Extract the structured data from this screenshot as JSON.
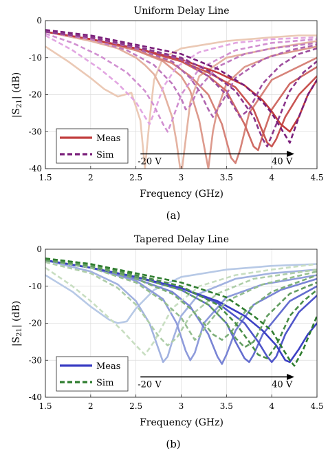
{
  "chart_data": [
    {
      "type": "line",
      "title": "Uniform Delay Line",
      "subtitle": "(a)",
      "xlabel": "Frequency (GHz)",
      "ylabel_prefix": "|S",
      "ylabel_sub": "21",
      "ylabel_suffix": "| (dB)",
      "xlim": [
        1.5,
        4.5
      ],
      "ylim": [
        -40,
        0
      ],
      "xticks": [
        1.5,
        2,
        2.5,
        3,
        3.5,
        4,
        4.5
      ],
      "xtick_labels": [
        "1.5",
        "2",
        "2.5",
        "3",
        "3.5",
        "4",
        "4.5"
      ],
      "yticks": [
        0,
        -10,
        -20,
        -30,
        -40
      ],
      "ytick_labels": [
        "0",
        "-10",
        "-20",
        "-30",
        "-40"
      ],
      "grid": true,
      "legend": {
        "position": "bottom-left",
        "entries": [
          {
            "label": "Meas",
            "style": "solid",
            "color": "#c13d3d"
          },
          {
            "label": "Sim",
            "style": "dashed",
            "color": "#7a1f7a"
          }
        ]
      },
      "annotation": {
        "start_label": "-20 V",
        "end_label": "40 V",
        "y": -36,
        "x_from": 2.55,
        "x_to": 4.25
      },
      "series_meas_color_light": "#ebc9b5",
      "series_meas_color_dark": "#c13d3d",
      "series_sim_color_light": "#e2a6e2",
      "series_sim_color_dark": "#7a1f7a",
      "series_meas": [
        {
          "x": [
            1.5,
            1.75,
            2.0,
            2.15,
            2.3,
            2.45,
            2.55,
            2.6,
            2.65,
            2.7,
            2.8,
            3.0,
            3.5,
            4.0,
            4.3,
            4.5
          ],
          "y": [
            -7,
            -11,
            -15.5,
            -18.5,
            -20.5,
            -19.5,
            -27,
            -40,
            -27,
            -16,
            -10,
            -7.5,
            -5.5,
            -4.5,
            -4,
            -4
          ]
        },
        {
          "x": [
            1.5,
            2.0,
            2.3,
            2.5,
            2.6,
            2.7,
            2.8,
            2.9,
            2.95,
            3.0,
            3.05,
            3.1,
            3.2,
            3.5,
            4.0,
            4.5
          ],
          "y": [
            -3,
            -5.5,
            -7.5,
            -10,
            -12,
            -14.5,
            -19,
            -26,
            -33,
            -42,
            -32,
            -22,
            -15,
            -10,
            -7.5,
            -5.5
          ]
        },
        {
          "x": [
            1.5,
            2.0,
            2.5,
            2.8,
            3.0,
            3.1,
            3.2,
            3.3,
            3.35,
            3.4,
            3.5,
            3.7,
            4.0,
            4.5
          ],
          "y": [
            -3,
            -5,
            -8,
            -11,
            -15,
            -19,
            -27,
            -40,
            -30,
            -24,
            -17,
            -12.5,
            -9.5,
            -7
          ]
        },
        {
          "x": [
            1.5,
            2.0,
            2.5,
            2.9,
            3.1,
            3.3,
            3.45,
            3.55,
            3.6,
            3.65,
            3.75,
            4.0,
            4.5
          ],
          "y": [
            -3,
            -5,
            -8,
            -11.5,
            -15,
            -20,
            -28,
            -37,
            -38.5,
            -35,
            -25,
            -16,
            -10
          ]
        },
        {
          "x": [
            1.5,
            2.0,
            2.5,
            3.0,
            3.3,
            3.5,
            3.7,
            3.8,
            3.85,
            3.9,
            4.0,
            4.2,
            4.5
          ],
          "y": [
            -3,
            -5,
            -7.5,
            -11,
            -15,
            -19,
            -28,
            -34,
            -35,
            -31,
            -24,
            -17,
            -12.5
          ]
        },
        {
          "x": [
            1.5,
            2.0,
            2.5,
            3.0,
            3.3,
            3.6,
            3.8,
            3.95,
            4.0,
            4.05,
            4.15,
            4.3,
            4.5
          ],
          "y": [
            -3,
            -5,
            -7.5,
            -11,
            -14,
            -18,
            -24,
            -33,
            -34,
            -32,
            -26,
            -20,
            -15
          ]
        },
        {
          "x": [
            1.5,
            2.0,
            2.5,
            3.0,
            3.4,
            3.7,
            3.9,
            4.0,
            4.1,
            4.2,
            4.3,
            4.4,
            4.5
          ],
          "y": [
            -3,
            -5,
            -7.5,
            -10.5,
            -14,
            -17.5,
            -21.5,
            -24.5,
            -28,
            -30,
            -26,
            -20,
            -16
          ]
        }
      ],
      "series_sim": [
        {
          "x": [
            1.5,
            1.8,
            2.1,
            2.3,
            2.5,
            2.6,
            2.65,
            2.7,
            2.8,
            2.95,
            3.2,
            3.6,
            4.0,
            4.5
          ],
          "y": [
            -4,
            -8,
            -13,
            -17,
            -22,
            -26,
            -28,
            -25,
            -18,
            -12.5,
            -8.5,
            -6,
            -5,
            -4.5
          ]
        },
        {
          "x": [
            1.5,
            1.8,
            2.1,
            2.4,
            2.6,
            2.7,
            2.8,
            2.85,
            2.9,
            3.0,
            3.2,
            3.6,
            4.0,
            4.5
          ],
          "y": [
            -3.5,
            -6,
            -9.5,
            -14,
            -19,
            -23,
            -28,
            -30,
            -27,
            -20,
            -13,
            -8,
            -6,
            -5
          ]
        },
        {
          "x": [
            1.5,
            2.0,
            2.4,
            2.7,
            2.9,
            3.0,
            3.05,
            3.1,
            3.2,
            3.4,
            3.7,
            4.0,
            4.5
          ],
          "y": [
            -3,
            -5,
            -8,
            -12,
            -17,
            -21,
            -24,
            -23,
            -18,
            -12.5,
            -9,
            -7.5,
            -6
          ]
        },
        {
          "x": [
            1.5,
            2.0,
            2.5,
            2.9,
            3.1,
            3.2,
            3.3,
            3.35,
            3.45,
            3.6,
            3.9,
            4.2,
            4.5
          ],
          "y": [
            -3,
            -4.5,
            -7.5,
            -11,
            -15.5,
            -19,
            -24,
            -26,
            -22,
            -15.5,
            -10.5,
            -8,
            -6.5
          ]
        },
        {
          "x": [
            1.5,
            2.0,
            2.5,
            3.0,
            3.3,
            3.5,
            3.6,
            3.65,
            3.75,
            3.9,
            4.1,
            4.3,
            4.5
          ],
          "y": [
            -3,
            -4.5,
            -7,
            -10.5,
            -15,
            -20,
            -24,
            -26,
            -24,
            -17,
            -12,
            -9,
            -7.5
          ]
        },
        {
          "x": [
            1.5,
            2.0,
            2.5,
            3.0,
            3.3,
            3.6,
            3.8,
            3.9,
            3.95,
            4.05,
            4.2,
            4.35,
            4.5
          ],
          "y": [
            -3,
            -4.5,
            -7,
            -10,
            -13.5,
            -19,
            -26,
            -32,
            -34,
            -28,
            -19,
            -14,
            -11
          ]
        },
        {
          "x": [
            1.5,
            2.0,
            2.5,
            3.0,
            3.4,
            3.7,
            3.9,
            4.0,
            4.1,
            4.2,
            4.3,
            4.4,
            4.5
          ],
          "y": [
            -2.5,
            -4,
            -6.5,
            -9,
            -13,
            -17.5,
            -22,
            -25,
            -29,
            -33,
            -26,
            -20,
            -16
          ]
        }
      ]
    },
    {
      "type": "line",
      "title": "Tapered Delay Line",
      "subtitle": "(b)",
      "xlabel": "Frequency (GHz)",
      "ylabel_prefix": "|S",
      "ylabel_sub": "21",
      "ylabel_suffix": "| (dB)",
      "xlim": [
        1.5,
        4.5
      ],
      "ylim": [
        -40,
        0
      ],
      "xticks": [
        1.5,
        2,
        2.5,
        3,
        3.5,
        4,
        4.5
      ],
      "xtick_labels": [
        "1.5",
        "2",
        "2.5",
        "3",
        "3.5",
        "4",
        "4.5"
      ],
      "yticks": [
        0,
        -10,
        -20,
        -30,
        -40
      ],
      "ytick_labels": [
        "0",
        "-10",
        "-20",
        "-30",
        "-40"
      ],
      "grid": true,
      "legend": {
        "position": "bottom-left",
        "entries": [
          {
            "label": "Meas",
            "style": "solid",
            "color": "#3b3fc4"
          },
          {
            "label": "Sim",
            "style": "dashed",
            "color": "#2f7d2f"
          }
        ]
      },
      "annotation": {
        "start_label": "-20 V",
        "end_label": "40 V",
        "y": -34.5,
        "x_from": 2.55,
        "x_to": 4.25
      },
      "series_meas_color_light": "#b7c9e6",
      "series_meas_color_dark": "#3b3fc4",
      "series_sim_color_light": "#c8dec1",
      "series_sim_color_dark": "#2f7d2f",
      "series_meas": [
        {
          "x": [
            1.5,
            1.8,
            2.0,
            2.2,
            2.3,
            2.4,
            2.5,
            2.7,
            3.0,
            3.5,
            4.0,
            4.5
          ],
          "y": [
            -7,
            -11.5,
            -15.5,
            -19,
            -20,
            -19.5,
            -16,
            -11,
            -7.5,
            -5.5,
            -4.5,
            -4
          ]
        },
        {
          "x": [
            1.5,
            2.0,
            2.3,
            2.5,
            2.65,
            2.75,
            2.8,
            2.85,
            2.9,
            3.0,
            3.2,
            3.6,
            4.0,
            4.5
          ],
          "y": [
            -3,
            -6,
            -9.5,
            -14,
            -20,
            -27,
            -30.5,
            -29,
            -25,
            -18,
            -12,
            -8,
            -6.5,
            -5.5
          ]
        },
        {
          "x": [
            1.5,
            2.0,
            2.5,
            2.8,
            2.95,
            3.05,
            3.1,
            3.15,
            3.25,
            3.5,
            3.9,
            4.5
          ],
          "y": [
            -3,
            -5,
            -8.5,
            -13.5,
            -20,
            -27.5,
            -30,
            -28,
            -20,
            -13,
            -9.5,
            -7
          ]
        },
        {
          "x": [
            1.5,
            2.0,
            2.5,
            2.9,
            3.1,
            3.3,
            3.4,
            3.45,
            3.5,
            3.6,
            3.8,
            4.1,
            4.5
          ],
          "y": [
            -3,
            -5,
            -8,
            -11.5,
            -15.5,
            -23,
            -29,
            -31,
            -28.5,
            -22,
            -15,
            -11,
            -8
          ]
        },
        {
          "x": [
            1.5,
            2.0,
            2.5,
            3.0,
            3.3,
            3.5,
            3.6,
            3.7,
            3.75,
            3.8,
            3.9,
            4.2,
            4.5
          ],
          "y": [
            -3,
            -5,
            -7.5,
            -11,
            -15,
            -20,
            -25,
            -29.5,
            -30.5,
            -28.5,
            -23,
            -14,
            -10
          ]
        },
        {
          "x": [
            1.5,
            2.0,
            2.5,
            3.0,
            3.4,
            3.7,
            3.85,
            3.95,
            4.0,
            4.05,
            4.15,
            4.3,
            4.5
          ],
          "y": [
            -3,
            -5,
            -7.5,
            -10.5,
            -14.5,
            -20,
            -25,
            -29,
            -30.5,
            -29,
            -23,
            -17,
            -12.5
          ]
        },
        {
          "x": [
            1.5,
            2.0,
            2.5,
            3.0,
            3.4,
            3.7,
            3.9,
            4.05,
            4.15,
            4.2,
            4.3,
            4.4,
            4.5
          ],
          "y": [
            -3,
            -5,
            -7.5,
            -10.5,
            -14,
            -18,
            -22,
            -26,
            -30,
            -30.5,
            -27,
            -23,
            -20
          ]
        }
      ],
      "series_sim": [
        {
          "x": [
            1.5,
            1.8,
            2.0,
            2.2,
            2.35,
            2.5,
            2.6,
            2.7,
            2.9,
            3.2,
            3.6,
            4.0,
            4.5
          ],
          "y": [
            -5,
            -10,
            -14,
            -18.5,
            -22,
            -26,
            -28.5,
            -25,
            -16,
            -10,
            -7,
            -5.5,
            -4
          ]
        },
        {
          "x": [
            1.5,
            2.0,
            2.3,
            2.5,
            2.65,
            2.75,
            2.85,
            2.95,
            3.1,
            3.4,
            3.8,
            4.5
          ],
          "y": [
            -3.5,
            -6.5,
            -10.5,
            -15,
            -20,
            -23.5,
            -26,
            -24,
            -18,
            -12,
            -8,
            -5.5
          ]
        },
        {
          "x": [
            1.5,
            2.0,
            2.5,
            2.8,
            3.0,
            3.1,
            3.15,
            3.2,
            3.3,
            3.5,
            3.9,
            4.5
          ],
          "y": [
            -3,
            -5,
            -9,
            -14,
            -18.5,
            -22.5,
            -24.5,
            -23.5,
            -20,
            -14,
            -9.5,
            -6
          ]
        },
        {
          "x": [
            1.5,
            2.0,
            2.5,
            2.9,
            3.1,
            3.25,
            3.35,
            3.45,
            3.55,
            3.7,
            4.0,
            4.5
          ],
          "y": [
            -3,
            -4.5,
            -8,
            -12,
            -16,
            -20,
            -23,
            -24.5,
            -22.5,
            -17,
            -11.5,
            -7
          ]
        },
        {
          "x": [
            1.5,
            2.0,
            2.5,
            3.0,
            3.3,
            3.5,
            3.6,
            3.7,
            3.8,
            3.95,
            4.2,
            4.5
          ],
          "y": [
            -3,
            -4.5,
            -7.5,
            -11,
            -15,
            -20,
            -24,
            -26.5,
            -25,
            -18,
            -12,
            -9
          ]
        },
        {
          "x": [
            1.5,
            2.0,
            2.5,
            3.0,
            3.4,
            3.6,
            3.75,
            3.85,
            3.95,
            4.05,
            4.2,
            4.35,
            4.5
          ],
          "y": [
            -2.5,
            -4,
            -7,
            -10,
            -15,
            -20,
            -25,
            -28.5,
            -29.5,
            -26,
            -18,
            -14,
            -11
          ]
        },
        {
          "x": [
            1.5,
            2.0,
            2.5,
            3.0,
            3.5,
            3.8,
            4.0,
            4.1,
            4.2,
            4.25,
            4.35,
            4.45,
            4.5
          ],
          "y": [
            -2.5,
            -4,
            -6.5,
            -9,
            -13,
            -18,
            -22,
            -26,
            -30,
            -31.5,
            -27,
            -21,
            -18
          ]
        }
      ]
    }
  ]
}
